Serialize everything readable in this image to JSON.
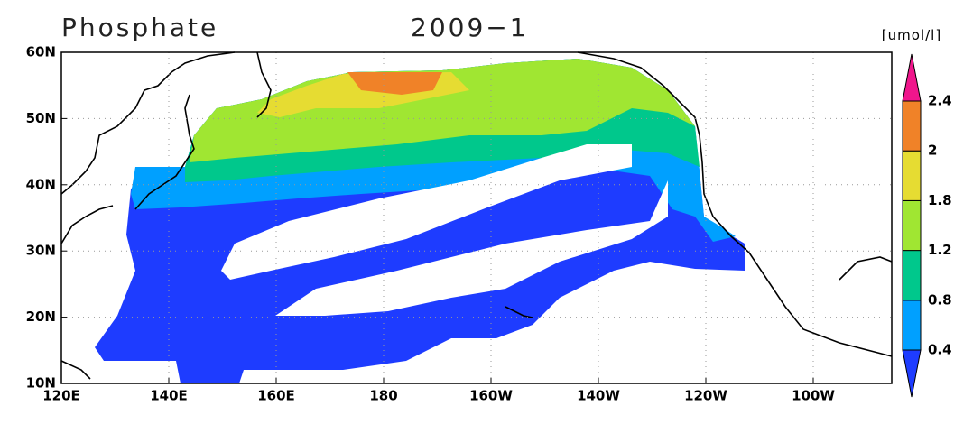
{
  "header": {
    "title": "Phosphate",
    "date": "2009−1"
  },
  "colorbar": {
    "unit": "[umol/l]",
    "levels": [
      0.4,
      0.8,
      1.2,
      1.8,
      2,
      2.4
    ],
    "colors": [
      "#1e3cff",
      "#00a0ff",
      "#00c88c",
      "#a0e632",
      "#e6dc32",
      "#f08228",
      "#f0168c"
    ]
  },
  "axes": {
    "lon_labels": [
      "120E",
      "140E",
      "160E",
      "180",
      "160W",
      "140W",
      "120W",
      "100W"
    ],
    "lat_labels": [
      "60N",
      "50N",
      "40N",
      "30N",
      "20N",
      "10N"
    ]
  }
}
